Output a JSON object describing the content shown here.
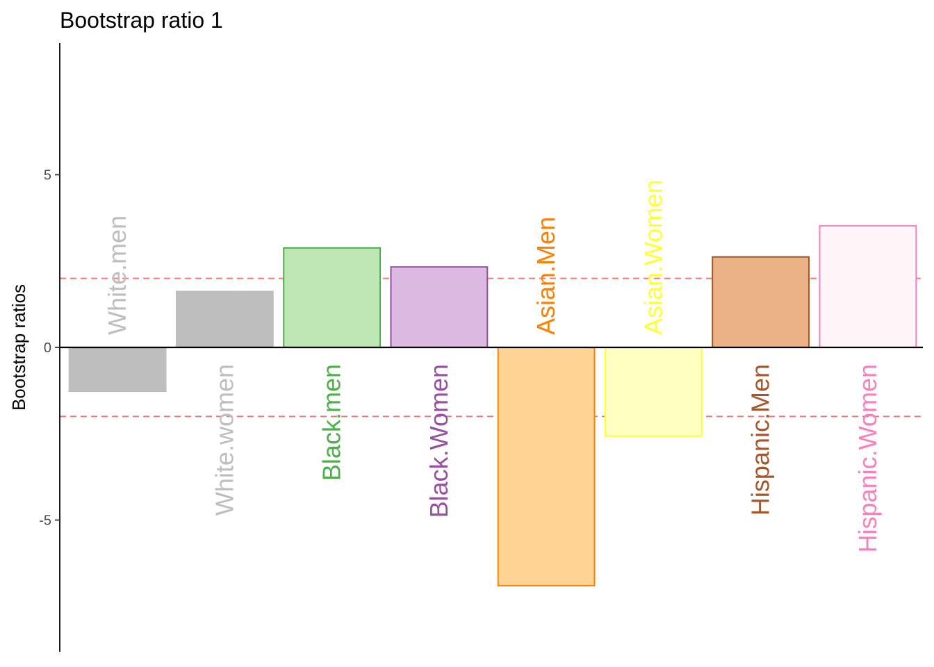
{
  "chart_data": {
    "type": "bar",
    "title": "Bootstrap ratio 1",
    "xlabel": "",
    "ylabel": "Bootstrap ratios",
    "ylim": [
      -8.8,
      8.8
    ],
    "yticks": [
      -5,
      0,
      5
    ],
    "ytick_labels": [
      "-5",
      "0",
      "5"
    ],
    "threshold_lines": [
      2,
      -2
    ],
    "threshold_color": "#f8766d",
    "grid": false,
    "legend": "none",
    "categories": [
      "White.men",
      "White.women",
      "Black.men",
      "Black.Women",
      "Asian.Men",
      "Asian.Women",
      "Hispanic.Men",
      "Hispanic.Women"
    ],
    "values": [
      -1.27,
      1.62,
      2.88,
      2.33,
      -6.9,
      -2.57,
      2.62,
      3.52
    ],
    "fill_colors": [
      "#bebebe",
      "#bebebe",
      "#bfe6b5",
      "#dcb9e1",
      "#ffd494",
      "#ffffbf",
      "#eab285",
      "#fff6fa"
    ],
    "stroke_colors": [
      "#bebebe",
      "#bebebe",
      "#4daf4a",
      "#984ea3",
      "#ff7f00",
      "#ffff33",
      "#a65628",
      "#f781bf"
    ],
    "label_colors": [
      "#bebebe",
      "#bebebe",
      "#4daf4a",
      "#984ea3",
      "#ff7f00",
      "#ffff33",
      "#a65628",
      "#f781bf"
    ]
  }
}
